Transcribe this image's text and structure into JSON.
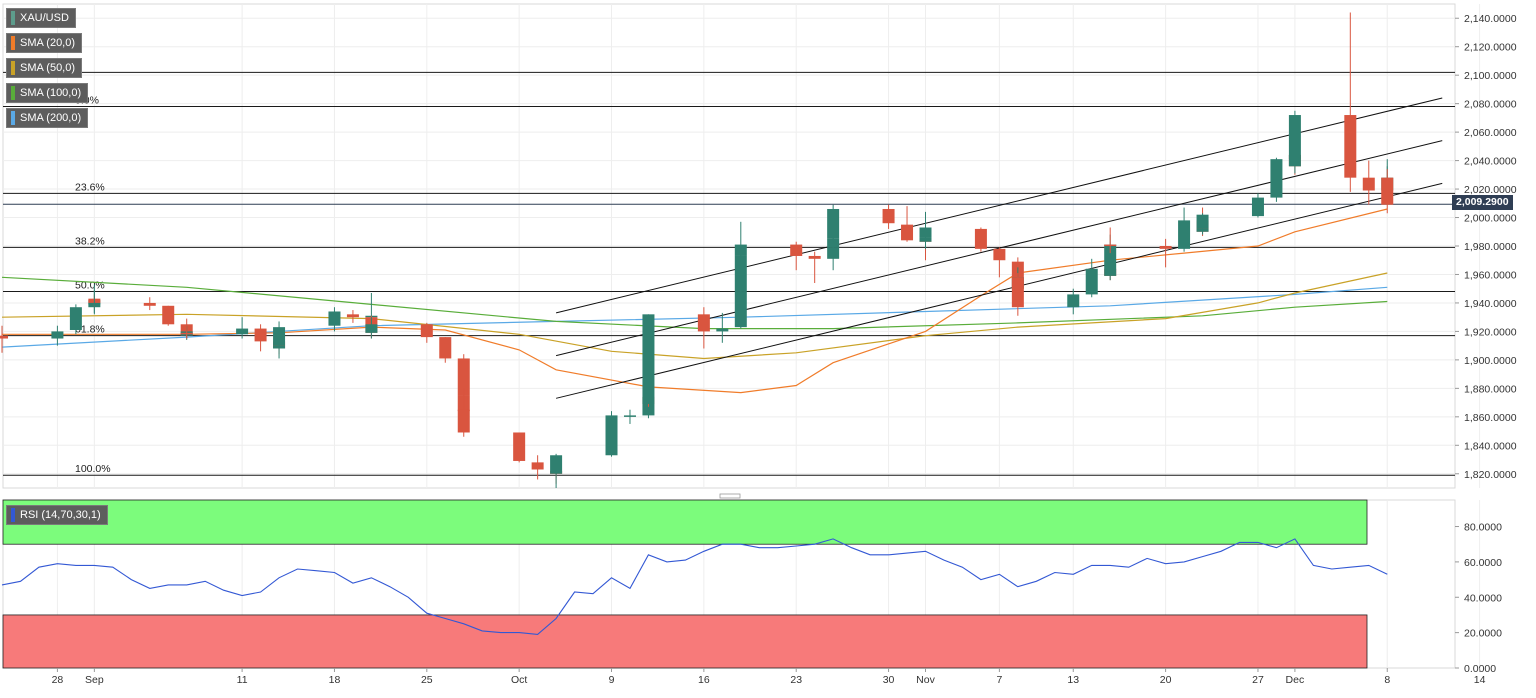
{
  "symbol": "XAU/USD",
  "current_price_label": "2,009.2900",
  "indicators": [
    {
      "label": "SMA (20,0)",
      "color": "#f07c2a"
    },
    {
      "label": "SMA (50,0)",
      "color": "#c9a227"
    },
    {
      "label": "SMA (100,0)",
      "color": "#59ad3a"
    },
    {
      "label": "SMA (200,0)",
      "color": "#5aa9e6"
    }
  ],
  "rsi": {
    "label": "RSI (14,70,30,1)",
    "overbought": 70,
    "oversold": 30,
    "color": "#3358d4",
    "overbought_color": "#7cfc7c",
    "oversold_color": "#f77a7a"
  },
  "colors": {
    "up": "#2f8070",
    "down": "#d9553f",
    "grid": "#eeeeee"
  },
  "chart_data": {
    "type": "candlestick",
    "title": "XAU/USD",
    "ylim": [
      1810,
      2150
    ],
    "y_ticks": [
      1820,
      1840,
      1860,
      1880,
      1900,
      1920,
      1940,
      1960,
      1980,
      2000,
      2020,
      2040,
      2060,
      2080,
      2100,
      2120,
      2140
    ],
    "y_tick_labels": [
      "1,820.0000",
      "1,840.0000",
      "1,860.0000",
      "1,880.0000",
      "1,900.0000",
      "1,920.0000",
      "1,940.0000",
      "1,960.0000",
      "1,980.0000",
      "2,000.0000",
      "2,020.0000",
      "2,040.0000",
      "2,060.0000",
      "2,080.0000",
      "2,100.0000",
      "2,120.0000",
      "2,140.0000"
    ],
    "x_ticks": [
      {
        "label": "28",
        "date": "2023-08-28"
      },
      {
        "label": "Sep",
        "date": "2023-09-01"
      },
      {
        "label": "11",
        "date": "2023-09-11"
      },
      {
        "label": "18",
        "date": "2023-09-18"
      },
      {
        "label": "25",
        "date": "2023-09-25"
      },
      {
        "label": "Oct",
        "date": "2023-10-02"
      },
      {
        "label": "9",
        "date": "2023-10-09"
      },
      {
        "label": "16",
        "date": "2023-10-16"
      },
      {
        "label": "23",
        "date": "2023-10-23"
      },
      {
        "label": "30",
        "date": "2023-10-30"
      },
      {
        "label": "Nov",
        "date": "2023-11-01"
      },
      {
        "label": "7",
        "date": "2023-11-07"
      },
      {
        "label": "13",
        "date": "2023-11-13"
      },
      {
        "label": "20",
        "date": "2023-11-20"
      },
      {
        "label": "27",
        "date": "2023-11-27"
      },
      {
        "label": "Dec",
        "date": "2023-12-01"
      },
      {
        "label": "8",
        "date": "2023-12-08"
      },
      {
        "label": "14",
        "date": "2023-12-14"
      }
    ],
    "candles": [
      {
        "date": "2023-08-25",
        "o": 1917,
        "h": 1924,
        "l": 1905,
        "c": 1915
      },
      {
        "date": "2023-08-28",
        "o": 1915,
        "h": 1924,
        "l": 1910,
        "c": 1920
      },
      {
        "date": "2023-08-29",
        "o": 1921,
        "h": 1939,
        "l": 1918,
        "c": 1937
      },
      {
        "date": "2023-08-30",
        "o": 1937,
        "h": 1949,
        "l": 1933,
        "c": 1942
      },
      {
        "date": "2023-08-31",
        "o": 1943,
        "h": 1946,
        "l": 1937,
        "c": 1940
      },
      {
        "date": "2023-09-01",
        "o": 1940,
        "h": 1953,
        "l": 1932,
        "c": 1940
      },
      {
        "date": "2023-09-04",
        "o": 1940,
        "h": 1944,
        "l": 1935,
        "c": 1938
      },
      {
        "date": "2023-09-05",
        "o": 1938,
        "h": 1938,
        "l": 1924,
        "c": 1925
      },
      {
        "date": "2023-09-06",
        "o": 1925,
        "h": 1929,
        "l": 1915,
        "c": 1917
      },
      {
        "date": "2023-09-07",
        "o": 1917,
        "h": 1924,
        "l": 1914,
        "c": 1920
      },
      {
        "date": "2023-09-08",
        "o": 1919,
        "h": 1925,
        "l": 1915,
        "c": 1918
      },
      {
        "date": "2023-09-11",
        "o": 1918,
        "h": 1930,
        "l": 1915,
        "c": 1922
      },
      {
        "date": "2023-09-12",
        "o": 1922,
        "h": 1925,
        "l": 1906,
        "c": 1913
      },
      {
        "date": "2023-09-13",
        "o": 1913,
        "h": 1916,
        "l": 1904,
        "c": 1908
      },
      {
        "date": "2023-09-14",
        "o": 1908,
        "h": 1915,
        "l": 1901,
        "c": 1910
      },
      {
        "date": "2023-09-15",
        "o": 1910,
        "h": 1927,
        "l": 1909,
        "c": 1923
      },
      {
        "date": "2023-09-18",
        "o": 1924,
        "h": 1937,
        "l": 1920,
        "c": 1934
      },
      {
        "date": "2023-09-19",
        "o": 1932,
        "h": 1935,
        "l": 1926,
        "c": 1930
      },
      {
        "date": "2023-09-20",
        "o": 1930,
        "h": 1947,
        "l": 1925,
        "c": 1931
      },
      {
        "date": "2023-09-21",
        "o": 1930,
        "h": 1931,
        "l": 1915,
        "c": 1919
      },
      {
        "date": "2023-09-22",
        "o": 1919,
        "h": 1930,
        "l": 1915,
        "c": 1925
      },
      {
        "date": "2023-09-25",
        "o": 1925,
        "h": 1926,
        "l": 1912,
        "c": 1916
      },
      {
        "date": "2023-09-26",
        "o": 1916,
        "h": 1916,
        "l": 1898,
        "c": 1901
      },
      {
        "date": "2023-09-27",
        "o": 1901,
        "h": 1904,
        "l": 1872,
        "c": 1875
      },
      {
        "date": "2023-09-28",
        "o": 1875,
        "h": 1879,
        "l": 1857,
        "c": 1864
      },
      {
        "date": "2023-09-29",
        "o": 1865,
        "h": 1880,
        "l": 1846,
        "c": 1849
      },
      {
        "date": "2023-10-02",
        "o": 1849,
        "h": 1849,
        "l": 1828,
        "c": 1829
      },
      {
        "date": "2023-10-03",
        "o": 1828,
        "h": 1833,
        "l": 1816,
        "c": 1823
      },
      {
        "date": "2023-10-04",
        "o": 1822,
        "h": 1831,
        "l": 1817,
        "c": 1821
      },
      {
        "date": "2023-10-05",
        "o": 1821,
        "h": 1825,
        "l": 1813,
        "c": 1820
      },
      {
        "date": "2023-10-06",
        "o": 1820,
        "h": 1834,
        "l": 1810,
        "c": 1833
      },
      {
        "date": "2023-10-09",
        "o": 1833,
        "h": 1864,
        "l": 1832,
        "c": 1861
      },
      {
        "date": "2023-10-10",
        "o": 1861,
        "h": 1865,
        "l": 1855,
        "c": 1861
      },
      {
        "date": "2023-10-11",
        "o": 1861,
        "h": 1877,
        "l": 1859,
        "c": 1874
      },
      {
        "date": "2023-10-12",
        "o": 1874,
        "h": 1885,
        "l": 1867,
        "c": 1869
      },
      {
        "date": "2023-10-13",
        "o": 1869,
        "h": 1932,
        "l": 1869,
        "c": 1932
      },
      {
        "date": "2023-10-16",
        "o": 1932,
        "h": 1937,
        "l": 1908,
        "c": 1920
      },
      {
        "date": "2023-10-17",
        "o": 1920,
        "h": 1933,
        "l": 1912,
        "c": 1922
      },
      {
        "date": "2023-10-18",
        "o": 1923,
        "h": 1962,
        "l": 1922,
        "c": 1948
      },
      {
        "date": "2023-10-19",
        "o": 1948,
        "h": 1978,
        "l": 1946,
        "c": 1973
      },
      {
        "date": "2023-10-20",
        "o": 1973,
        "h": 1997,
        "l": 1969,
        "c": 1981
      },
      {
        "date": "2023-10-23",
        "o": 1981,
        "h": 1983,
        "l": 1963,
        "c": 1973
      },
      {
        "date": "2023-10-24",
        "o": 1973,
        "h": 1976,
        "l": 1954,
        "c": 1971
      },
      {
        "date": "2023-10-25",
        "o": 1971,
        "h": 1988,
        "l": 1963,
        "c": 1979
      },
      {
        "date": "2023-10-26",
        "o": 1979,
        "h": 1990,
        "l": 1975,
        "c": 1985
      },
      {
        "date": "2023-10-27",
        "o": 1985,
        "h": 2009,
        "l": 1983,
        "c": 2006
      },
      {
        "date": "2023-10-30",
        "o": 2006,
        "h": 2009,
        "l": 1992,
        "c": 1996
      },
      {
        "date": "2023-10-31",
        "o": 1995,
        "h": 2008,
        "l": 1983,
        "c": 1984
      },
      {
        "date": "2023-11-01",
        "o": 1984,
        "h": 1990,
        "l": 1970,
        "c": 1983
      },
      {
        "date": "2023-11-02",
        "o": 1983,
        "h": 1993,
        "l": 1978,
        "c": 1986
      },
      {
        "date": "2023-11-03",
        "o": 1986,
        "h": 2004,
        "l": 1983,
        "c": 1993
      },
      {
        "date": "2023-11-06",
        "o": 1992,
        "h": 1993,
        "l": 1976,
        "c": 1978
      },
      {
        "date": "2023-11-07",
        "o": 1978,
        "h": 1979,
        "l": 1958,
        "c": 1970
      },
      {
        "date": "2023-11-08",
        "o": 1969,
        "h": 1972,
        "l": 1948,
        "c": 1950
      },
      {
        "date": "2023-11-09",
        "o": 1950,
        "h": 1965,
        "l": 1945,
        "c": 1958
      },
      {
        "date": "2023-11-10",
        "o": 1958,
        "h": 1961,
        "l": 1931,
        "c": 1937
      },
      {
        "date": "2023-11-13",
        "o": 1937,
        "h": 1950,
        "l": 1932,
        "c": 1946
      },
      {
        "date": "2023-11-14",
        "o": 1946,
        "h": 1971,
        "l": 1944,
        "c": 1964
      },
      {
        "date": "2023-11-15",
        "o": 1964,
        "h": 1970,
        "l": 1956,
        "c": 1959
      },
      {
        "date": "2023-11-16",
        "o": 1959,
        "h": 1988,
        "l": 1956,
        "c": 1981
      },
      {
        "date": "2023-11-17",
        "o": 1981,
        "h": 1993,
        "l": 1975,
        "c": 1980
      },
      {
        "date": "2023-11-20",
        "o": 1980,
        "h": 1985,
        "l": 1965,
        "c": 1978
      },
      {
        "date": "2023-11-21",
        "o": 1978,
        "h": 2007,
        "l": 1976,
        "c": 1998
      },
      {
        "date": "2023-11-22",
        "o": 1998,
        "h": 2007,
        "l": 1987,
        "c": 1990
      },
      {
        "date": "2023-11-23",
        "o": 1990,
        "h": 1997,
        "l": 1988,
        "c": 1992
      },
      {
        "date": "2023-11-24",
        "o": 1992,
        "h": 2003,
        "l": 1990,
        "c": 2002
      },
      {
        "date": "2023-11-27",
        "o": 2001,
        "h": 2017,
        "l": 2000,
        "c": 2014
      },
      {
        "date": "2023-11-28",
        "o": 2014,
        "h": 2042,
        "l": 2011,
        "c": 2041
      },
      {
        "date": "2023-11-29",
        "o": 2041,
        "h": 2052,
        "l": 2036,
        "c": 2044
      },
      {
        "date": "2023-11-30",
        "o": 2044,
        "h": 2049,
        "l": 2030,
        "c": 2036
      },
      {
        "date": "2023-12-01",
        "o": 2036,
        "h": 2075,
        "l": 2031,
        "c": 2072
      },
      {
        "date": "2023-12-04",
        "o": 2072,
        "h": 2144,
        "l": 2018,
        "c": 2028
      },
      {
        "date": "2023-12-05",
        "o": 2028,
        "h": 2040,
        "l": 2009,
        "c": 2019
      },
      {
        "date": "2023-12-06",
        "o": 2019,
        "h": 2036,
        "l": 2017,
        "c": 2025
      },
      {
        "date": "2023-12-07",
        "o": 2025,
        "h": 2041,
        "l": 2018,
        "c": 2028
      },
      {
        "date": "2023-12-08",
        "o": 2028,
        "h": 2034,
        "l": 2003,
        "c": 2009
      }
    ],
    "sma_20": [
      [
        "2023-08-25",
        1918
      ],
      [
        "2023-08-31",
        1918
      ],
      [
        "2023-09-08",
        1918
      ],
      [
        "2023-09-15",
        1919
      ],
      [
        "2023-09-22",
        1923
      ],
      [
        "2023-09-26",
        1921
      ],
      [
        "2023-10-02",
        1907
      ],
      [
        "2023-10-06",
        1893
      ],
      [
        "2023-10-12",
        1881
      ],
      [
        "2023-10-18",
        1877
      ],
      [
        "2023-10-23",
        1882
      ],
      [
        "2023-10-27",
        1898
      ],
      [
        "2023-11-01",
        1920
      ],
      [
        "2023-11-06",
        1945
      ],
      [
        "2023-11-10",
        1961
      ],
      [
        "2023-11-16",
        1970
      ],
      [
        "2023-11-21",
        1975
      ],
      [
        "2023-11-27",
        1980
      ],
      [
        "2023-12-01",
        1990
      ],
      [
        "2023-12-08",
        2006
      ]
    ],
    "sma_50": [
      [
        "2023-08-25",
        1930
      ],
      [
        "2023-09-08",
        1932
      ],
      [
        "2023-09-22",
        1929
      ],
      [
        "2023-10-02",
        1918
      ],
      [
        "2023-10-09",
        1906
      ],
      [
        "2023-10-16",
        1901
      ],
      [
        "2023-10-23",
        1905
      ],
      [
        "2023-11-01",
        1917
      ],
      [
        "2023-11-10",
        1923
      ],
      [
        "2023-11-20",
        1929
      ],
      [
        "2023-11-27",
        1940
      ],
      [
        "2023-12-01",
        1947
      ],
      [
        "2023-12-08",
        1961
      ]
    ],
    "sma_100": [
      [
        "2023-08-25",
        1958
      ],
      [
        "2023-09-08",
        1951
      ],
      [
        "2023-09-22",
        1939
      ],
      [
        "2023-10-06",
        1927
      ],
      [
        "2023-10-16",
        1922
      ],
      [
        "2023-10-27",
        1922
      ],
      [
        "2023-11-10",
        1926
      ],
      [
        "2023-11-24",
        1931
      ],
      [
        "2023-12-01",
        1937
      ],
      [
        "2023-12-08",
        1941
      ]
    ],
    "sma_200": [
      [
        "2023-08-25",
        1909
      ],
      [
        "2023-09-08",
        1916
      ],
      [
        "2023-09-22",
        1924
      ],
      [
        "2023-10-06",
        1927
      ],
      [
        "2023-10-20",
        1930
      ],
      [
        "2023-11-03",
        1934
      ],
      [
        "2023-11-17",
        1938
      ],
      [
        "2023-12-01",
        1946
      ],
      [
        "2023-12-08",
        1951
      ]
    ],
    "horizontal_lines": [
      2102,
      2078,
      2017,
      2009.29,
      1979,
      1948,
      1917,
      1819
    ],
    "fibonacci_levels": [
      {
        "label": "0.0%",
        "value": 2078
      },
      {
        "label": "23.6%",
        "value": 2017
      },
      {
        "label": "38.2%",
        "value": 1979
      },
      {
        "label": "50.0%",
        "value": 1948
      },
      {
        "label": "61.8%",
        "value": 1917
      },
      {
        "label": "100.0%",
        "value": 1819
      }
    ],
    "trend_channel": [
      {
        "start": [
          "2023-10-06",
          1933
        ],
        "end": [
          "2023-12-08",
          2084
        ]
      },
      {
        "start": [
          "2023-10-06",
          1903
        ],
        "end": [
          "2023-12-08",
          2054
        ]
      },
      {
        "start": [
          "2023-10-06",
          1873
        ],
        "end": [
          "2023-12-08",
          2024
        ]
      }
    ],
    "rsi_panel": {
      "ylim": [
        0,
        95
      ],
      "y_tick_labels": [
        "0.0000",
        "20.0000",
        "40.0000",
        "60.0000",
        "80.0000"
      ],
      "y_ticks": [
        0,
        20,
        40,
        60,
        80
      ],
      "values": [
        47,
        49,
        57,
        59,
        58,
        58,
        57,
        50,
        45,
        47,
        47,
        49,
        44,
        41,
        43,
        51,
        56,
        55,
        54,
        48,
        51,
        46,
        40,
        31,
        28,
        25,
        21,
        20,
        20,
        19,
        28,
        43,
        42,
        51,
        45,
        64,
        60,
        61,
        66,
        70,
        70,
        68,
        68,
        69,
        70,
        73,
        68,
        64,
        64,
        65,
        66,
        61,
        57,
        50,
        53,
        46,
        49,
        54,
        53,
        58,
        58,
        57,
        62,
        59,
        60,
        63,
        66,
        71,
        71,
        68,
        73,
        58,
        56,
        57,
        58,
        53
      ]
    }
  }
}
